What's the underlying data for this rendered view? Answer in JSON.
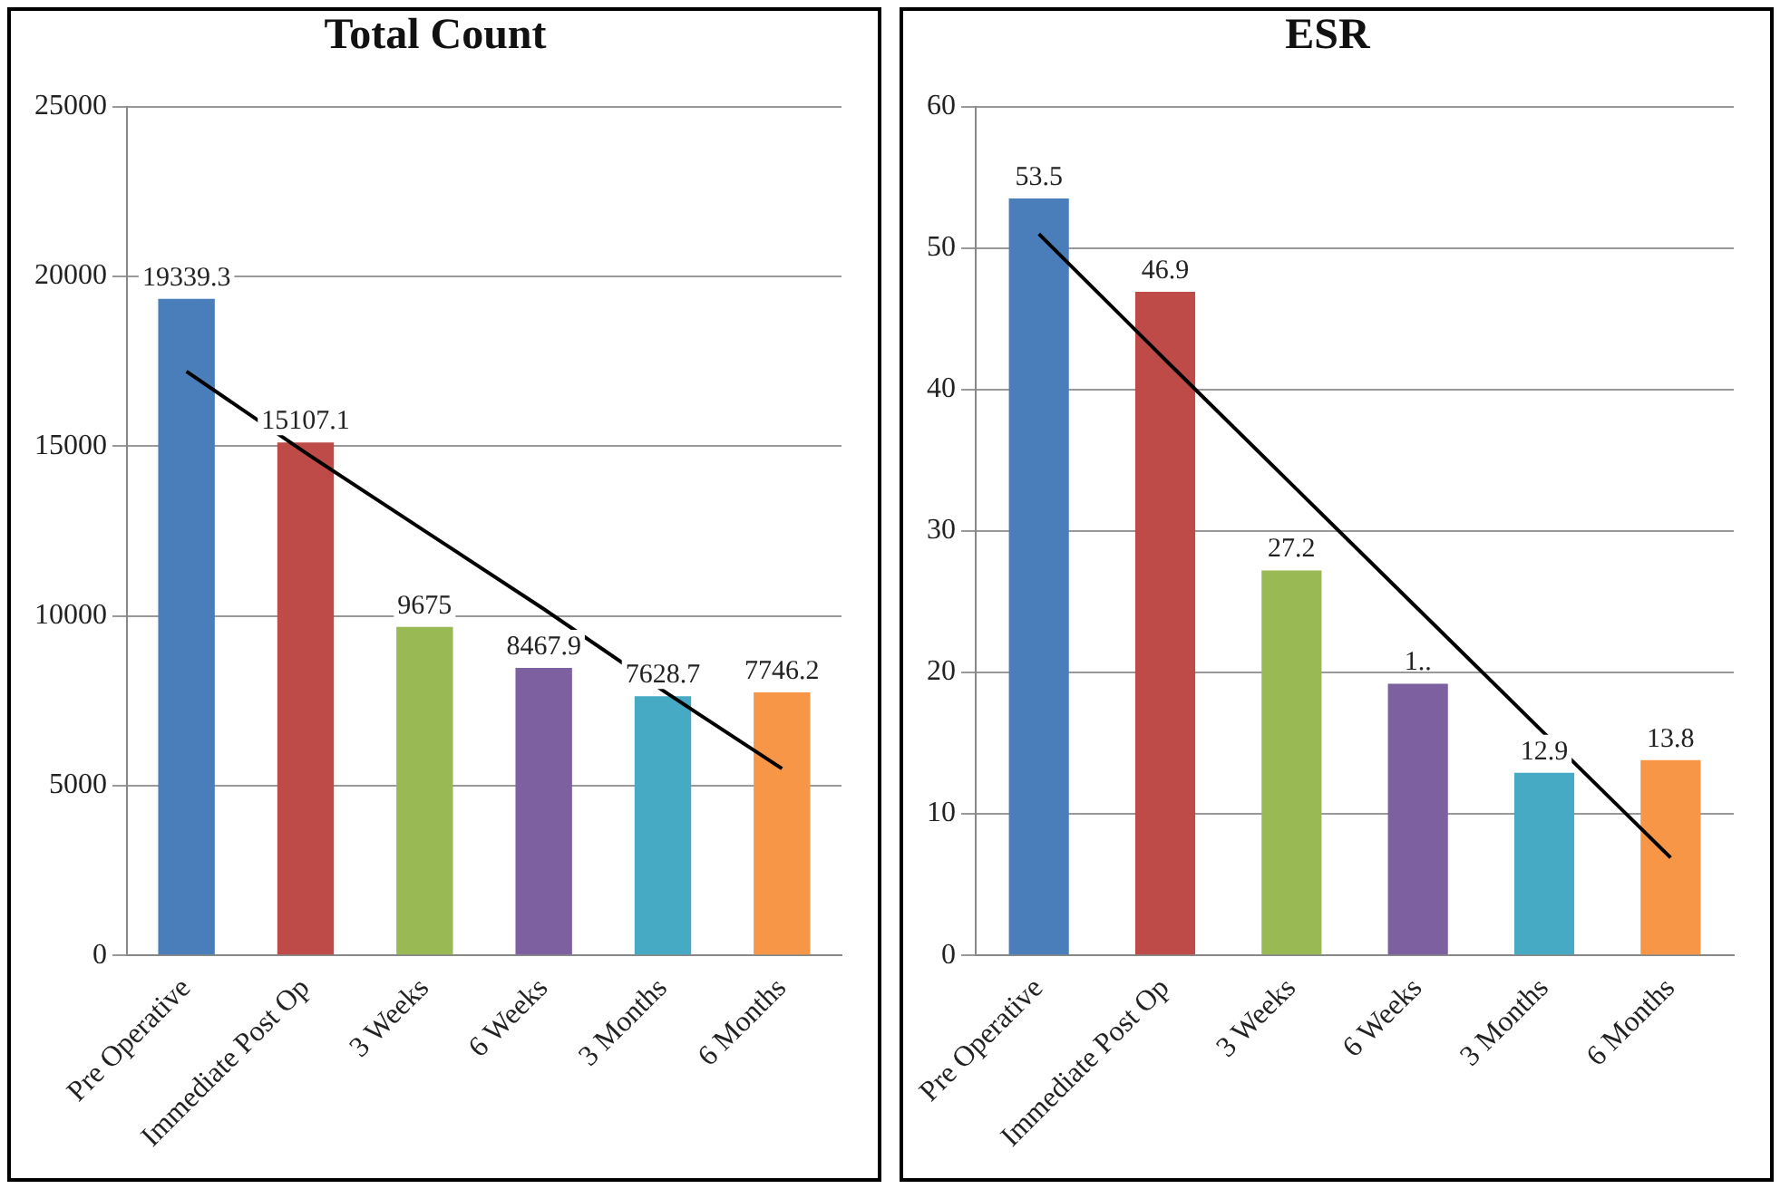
{
  "chart_data": [
    {
      "type": "bar",
      "title": "Total Count",
      "categories": [
        "Pre Operative",
        "Immediate Post Op",
        "3 Weeks",
        "6 Weeks",
        "3 Months",
        "6 Months"
      ],
      "ylim": [
        0,
        25000
      ],
      "yticks": [
        0,
        5000,
        10000,
        15000,
        20000,
        25000
      ],
      "grid": "y",
      "series": [
        {
          "colors": [
            "#4a7ebb",
            "#be4b48",
            "#98b954",
            "#7d60a0",
            "#46aac5",
            "#f79646"
          ],
          "values": [
            19339.3,
            15107.1,
            9675,
            8467.9,
            7628.7,
            7746.2
          ],
          "value_labels": [
            "19339.3",
            "15107.1",
            "9675",
            "8467.9",
            "7628.7",
            "7746.2"
          ]
        },
        {
          "type": "line",
          "color": "#000000",
          "marker": "none",
          "values": [
            17200,
            14800,
            12500,
            10200,
            7800,
            5500
          ]
        }
      ]
    },
    {
      "type": "bar",
      "title": "ESR",
      "categories": [
        "Pre Operative",
        "Immediate Post Op",
        "3 Weeks",
        "6 Weeks",
        "3 Months",
        "6 Months"
      ],
      "ylim": [
        0,
        60
      ],
      "yticks": [
        0,
        10,
        20,
        30,
        40,
        50,
        60
      ],
      "grid": "y",
      "annotations": [
        {
          "text": "1..",
          "x": "6 Weeks",
          "y": 19.2
        }
      ],
      "series": [
        {
          "colors": [
            "#4a7ebb",
            "#be4b48",
            "#98b954",
            "#7d60a0",
            "#46aac5",
            "#f79646"
          ],
          "values": [
            53.5,
            46.9,
            27.2,
            19.2,
            12.9,
            13.8
          ],
          "value_labels": [
            "53.5",
            "46.9",
            "27.2",
            null,
            "12.9",
            "13.8"
          ]
        },
        {
          "type": "line",
          "color": "#000000",
          "marker": "none",
          "values": [
            51.0,
            42.1,
            33.3,
            24.5,
            15.7,
            6.9
          ]
        }
      ]
    }
  ]
}
